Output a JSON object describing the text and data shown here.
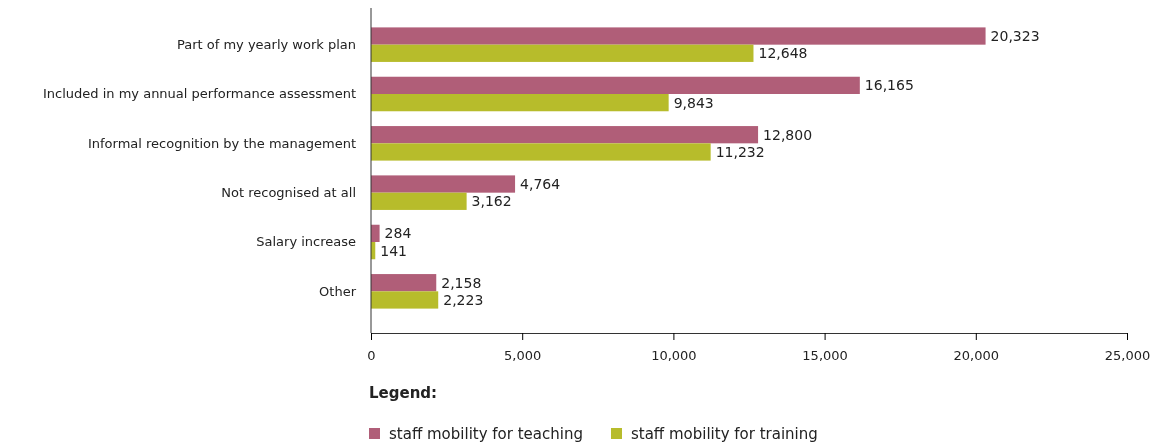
{
  "chart_data": {
    "type": "bar",
    "orientation": "horizontal",
    "categories": [
      "Part of my yearly work plan",
      "Included in my annual performance assessment",
      "Informal recognition by the management",
      "Not recognised at all",
      "Salary increase",
      "Other"
    ],
    "series": [
      {
        "name": "staff mobility for teaching",
        "color": "#b05e78",
        "values": [
          20323,
          16165,
          12800,
          4764,
          284,
          2158
        ],
        "value_labels": [
          "20,323",
          "16,165",
          "12,800",
          "4,764",
          "284",
          "2,158"
        ]
      },
      {
        "name": "staff mobility for training",
        "color": "#b7bc2b",
        "values": [
          12648,
          9843,
          11232,
          3162,
          141,
          2223
        ],
        "value_labels": [
          "12,648",
          "9,843",
          "11,232",
          "3,162",
          "141",
          "2,223"
        ]
      }
    ],
    "xlim": [
      0,
      25000
    ],
    "xticks": [
      {
        "value": 0,
        "label": "0"
      },
      {
        "value": 5000,
        "label": "5,000"
      },
      {
        "value": 10000,
        "label": "10,000"
      },
      {
        "value": 15000,
        "label": "15,000"
      },
      {
        "value": 20000,
        "label": "20,000"
      },
      {
        "value": 25000,
        "label": "25,000"
      }
    ],
    "grid": false,
    "legend": "bottom",
    "legend_title": "Legend:"
  }
}
